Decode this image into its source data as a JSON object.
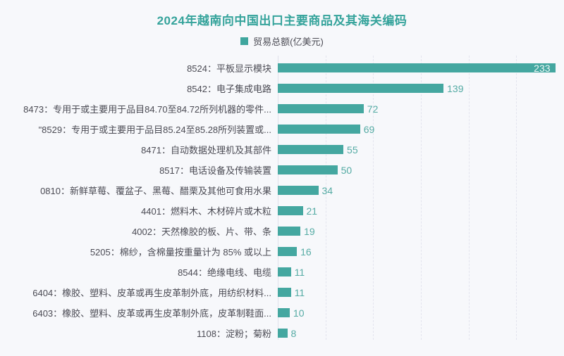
{
  "page": {
    "background_color": "#f7f8fb"
  },
  "header": {
    "title": "2024年越南向中国出口主要商品及其海关编码",
    "title_color": "#35a39b",
    "legend": {
      "label": "贸易总额(亿美元)",
      "swatch_color": "#3fa69e"
    }
  },
  "chart_data": {
    "type": "bar",
    "orientation": "horizontal",
    "title": "2024年越南向中国出口主要商品及其海关编码",
    "legend": [
      "贸易总额(亿美元)"
    ],
    "legend_position": "top-center",
    "categories": [
      "8524：平板显示模块",
      "8542：电子集成电路",
      "8473：专用于或主要用于品目84.70至84.72所列机器的零件...",
      "\"8529：专用于或主要用于品目85.24至85.28所列装置或...",
      "8471：自动数据处理机及其部件",
      "8517：电话设备及传输装置",
      "0810：新鲜草莓、覆盆子、黑莓、醋栗及其他可食用水果",
      "4401：燃料木、木材碎片或木粒",
      "4002：天然橡胶的板、片、带、条",
      "5205：棉纱，含棉量按重量计为 85% 或以上",
      "8544：绝缘电线、电缆",
      "6404：橡胶、塑料、皮革或再生皮革制外底，用纺织材料...",
      "6403：橡胶、塑料、皮革或再生皮革制外底，皮革制鞋面...",
      "1108：淀粉；菊粉"
    ],
    "values": [
      233,
      139,
      72,
      69,
      55,
      50,
      34,
      21,
      19,
      16,
      11,
      11,
      10,
      8
    ],
    "xlabel": "",
    "ylabel": "",
    "xlim": [
      0,
      240
    ],
    "gridlines": [
      40,
      80,
      120,
      160,
      200,
      240
    ],
    "grid_style": "vertical-dashed",
    "bar_color": "#44a7a0",
    "value_label_color": "#55aba4",
    "value_label_inside_color": "#eef6f5",
    "category_label_color": "#4b4b54",
    "gridline_color": "#e3e4ee"
  }
}
